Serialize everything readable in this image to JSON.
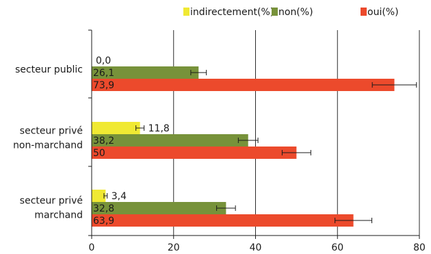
{
  "chart_data": {
    "type": "bar",
    "orientation": "horizontal",
    "categories": [
      [
        "secteur public"
      ],
      [
        "secteur privé",
        "non-marchand"
      ],
      [
        "secteur privé",
        "marchand"
      ]
    ],
    "series": [
      {
        "name": "indirectement(%)",
        "color": "#f0e933",
        "values": [
          0.0,
          11.8,
          3.4
        ],
        "labels": [
          "0,0",
          "11,8",
          "3,4"
        ],
        "error": [
          0,
          1.0,
          0.4
        ]
      },
      {
        "name": "non(%)",
        "color": "#77923a",
        "values": [
          26.1,
          38.2,
          32.8
        ],
        "labels": [
          "26,1",
          "38,2",
          "32,8"
        ],
        "error": [
          1.9,
          2.4,
          2.3
        ]
      },
      {
        "name": "oui(%)",
        "color": "#ec4a2c",
        "values": [
          73.9,
          50.0,
          63.9
        ],
        "labels": [
          "73,9",
          "50",
          "63,9"
        ],
        "error": [
          5.4,
          3.5,
          4.5
        ]
      }
    ],
    "xlim": [
      0,
      80
    ],
    "xticks": [
      0,
      20,
      40,
      60,
      80
    ],
    "xlabel": "",
    "ylabel": "",
    "title": "",
    "grid": "vertical",
    "legend_position": "top"
  }
}
